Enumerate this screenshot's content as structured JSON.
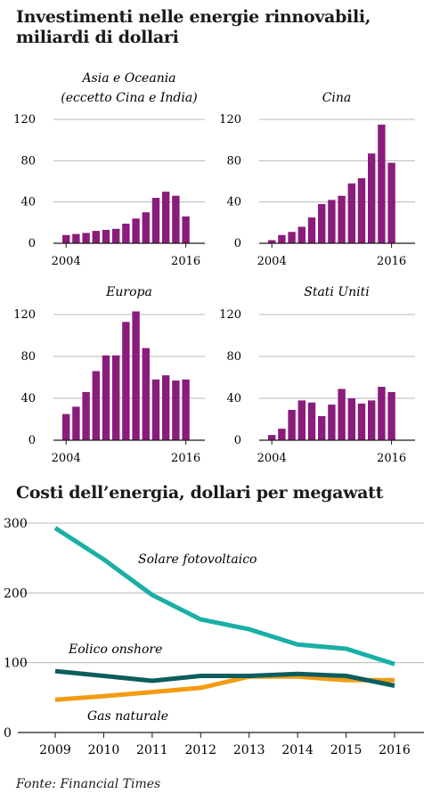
{
  "header": {
    "title": "Investimenti nelle energie rinnovabili, miliardi di dollari",
    "title_line1": "Investimenti nelle energie rinnovabili,",
    "title_line2": "miliardi di dollari"
  },
  "colors": {
    "bar": "#8a1c7c",
    "solar": "#1aafa6",
    "wind": "#0d5d5d",
    "gas": "#f39c12",
    "grid": "#b8b8b8",
    "axis": "#1a1a1a"
  },
  "chart_data": [
    {
      "type": "bar",
      "title": "Asia e Oceania (eccetto Cina e India)",
      "title_lines": [
        "Asia e Oceania",
        "(eccetto Cina e India)"
      ],
      "x": [
        2004,
        2005,
        2006,
        2007,
        2008,
        2009,
        2010,
        2011,
        2012,
        2013,
        2014,
        2015,
        2016
      ],
      "values": [
        8,
        9,
        10,
        12,
        13,
        14,
        19,
        24,
        30,
        44,
        50,
        46,
        26
      ],
      "x_tick_labels": [
        "2004",
        "2016"
      ],
      "y_ticks": [
        0,
        40,
        80,
        120
      ],
      "ylim": [
        0,
        120
      ],
      "grid": true
    },
    {
      "type": "bar",
      "title": "Cina",
      "title_lines": [
        "Cina"
      ],
      "x": [
        2004,
        2005,
        2006,
        2007,
        2008,
        2009,
        2010,
        2011,
        2012,
        2013,
        2014,
        2015,
        2016
      ],
      "values": [
        3,
        8,
        11,
        16,
        25,
        38,
        42,
        46,
        58,
        63,
        87,
        115,
        78
      ],
      "x_tick_labels": [
        "2004",
        "2016"
      ],
      "y_ticks": [
        0,
        40,
        80,
        120
      ],
      "ylim": [
        0,
        120
      ],
      "grid": true
    },
    {
      "type": "bar",
      "title": "Europa",
      "title_lines": [
        "Europa"
      ],
      "x": [
        2004,
        2005,
        2006,
        2007,
        2008,
        2009,
        2010,
        2011,
        2012,
        2013,
        2014,
        2015,
        2016
      ],
      "values": [
        25,
        32,
        46,
        66,
        81,
        81,
        113,
        123,
        88,
        58,
        62,
        57,
        58
      ],
      "x_tick_labels": [
        "2004",
        "2016"
      ],
      "y_ticks": [
        0,
        40,
        80,
        120
      ],
      "ylim": [
        0,
        120
      ],
      "grid": true
    },
    {
      "type": "bar",
      "title": "Stati Uniti",
      "title_lines": [
        "Stati Uniti"
      ],
      "x": [
        2004,
        2005,
        2006,
        2007,
        2008,
        2009,
        2010,
        2011,
        2012,
        2013,
        2014,
        2015,
        2016
      ],
      "values": [
        5,
        11,
        29,
        38,
        36,
        23,
        34,
        49,
        40,
        35,
        38,
        51,
        46
      ],
      "x_tick_labels": [
        "2004",
        "2016"
      ],
      "y_ticks": [
        0,
        40,
        80,
        120
      ],
      "ylim": [
        0,
        120
      ],
      "grid": true
    },
    {
      "type": "line",
      "title": "Costi dell’energia, dollari per megawatt",
      "x": [
        2009,
        2010,
        2011,
        2012,
        2013,
        2014,
        2015,
        2016
      ],
      "x_tick_labels": [
        "2009",
        "2010",
        "2011",
        "2012",
        "2013",
        "2014",
        "2015",
        "2016"
      ],
      "y_ticks": [
        0,
        100,
        200,
        300
      ],
      "ylim": [
        0,
        300
      ],
      "grid": true,
      "series": [
        {
          "name": "Solare fotovoltaico",
          "key": "solar",
          "values": [
            293,
            248,
            197,
            162,
            148,
            126,
            120,
            98
          ]
        },
        {
          "name": "Eolico onshore",
          "key": "wind",
          "values": [
            88,
            81,
            74,
            81,
            81,
            84,
            81,
            67
          ]
        },
        {
          "name": "Gas naturale",
          "key": "gas",
          "values": [
            47,
            52,
            58,
            64,
            80,
            80,
            75,
            75
          ]
        }
      ]
    }
  ],
  "source": "Fonte: Financial Times"
}
